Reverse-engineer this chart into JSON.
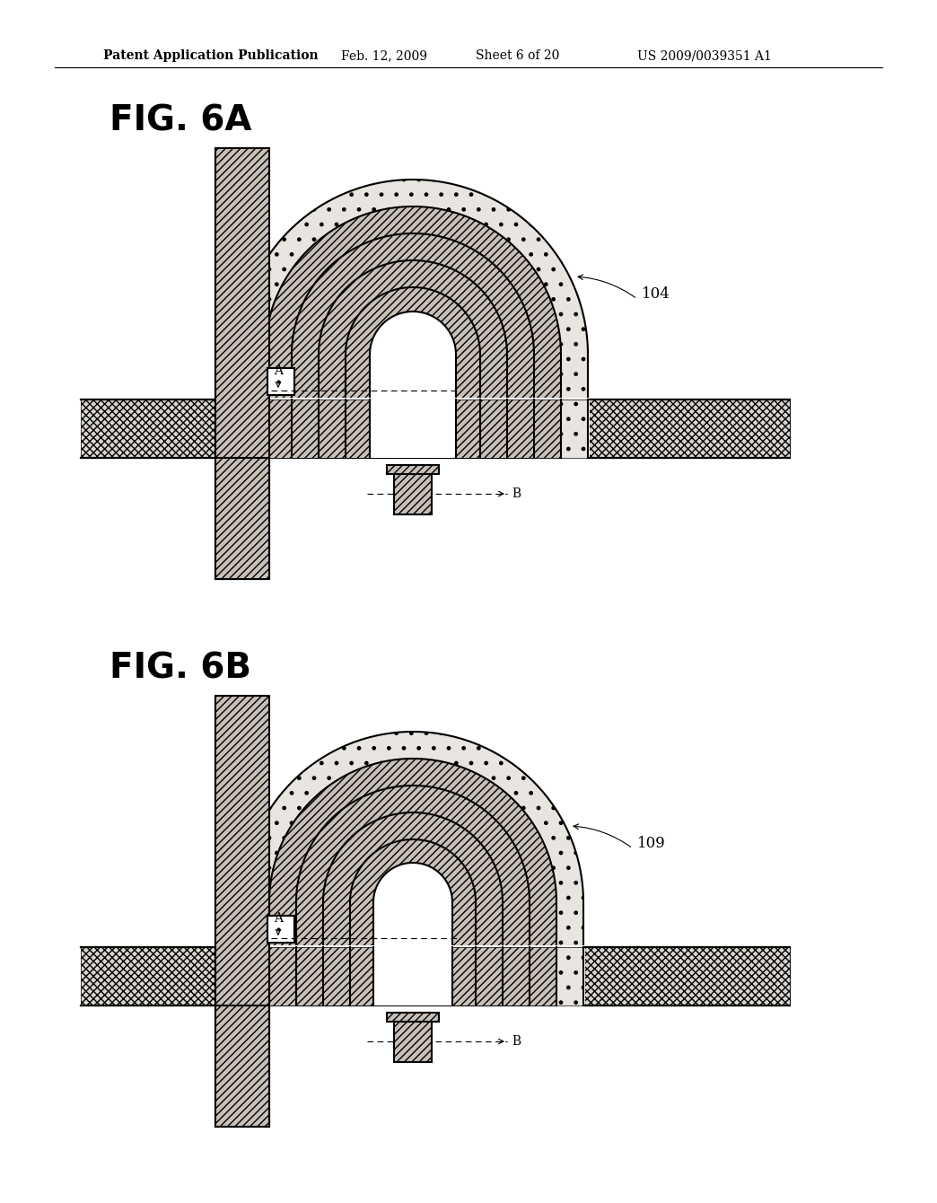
{
  "title_header": "Patent Application Publication",
  "header_date": "Feb. 12, 2009",
  "header_sheet": "Sheet 6 of 20",
  "header_patent": "US 2009/0039351 A1",
  "fig_a_label": "FIG. 6A",
  "fig_b_label": "FIG. 6B",
  "label_104": "104",
  "label_109": "109",
  "bg_color": "#ffffff"
}
